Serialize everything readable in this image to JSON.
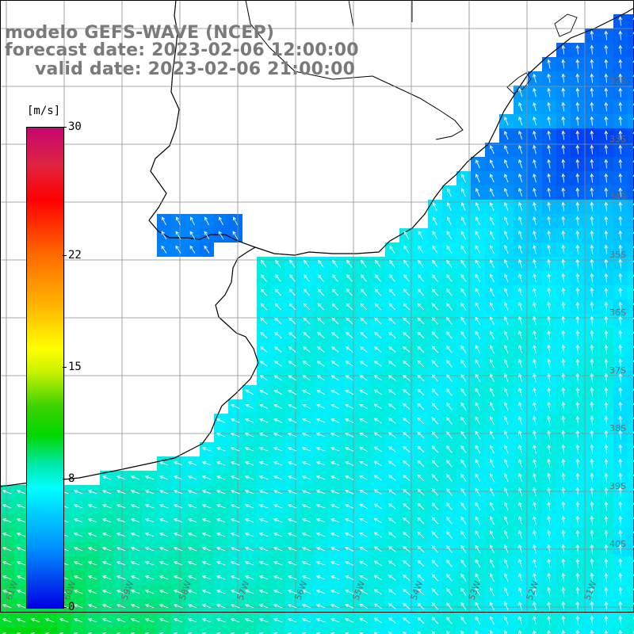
{
  "title": {
    "line1": "modelo GEFS-WAVE (NCEP)",
    "line2": "forecast date: 2023-02-06 12:00:00",
    "line3": "valid date: 2023-02-06 21:00:00"
  },
  "colorbar": {
    "unit": "[m/s]",
    "ticks": [
      {
        "label": "30",
        "value": 30
      },
      {
        "label": "22",
        "value": 22
      },
      {
        "label": "15",
        "value": 15
      },
      {
        "label": "8",
        "value": 8
      },
      {
        "label": "0",
        "value": 0
      }
    ],
    "colors": [
      "#0000e6",
      "#0096ff",
      "#00ffff",
      "#00d800",
      "#ffff00",
      "#ff6e00",
      "#ff0000",
      "#c4076f"
    ]
  },
  "grid": {
    "lat_labels": [
      "32S",
      "33S",
      "34S",
      "35S",
      "36S",
      "37S",
      "38S",
      "39S",
      "40S"
    ],
    "lon_labels": [
      "61W",
      "60W",
      "59W",
      "58W",
      "57W",
      "56W",
      "55W",
      "54W",
      "53W",
      "52W",
      "51W"
    ]
  },
  "colors": {
    "land": "#ffffff",
    "coast": "#000000",
    "grid": "#8c8c8c",
    "title": "#7a7a7a",
    "arrow": "#ffffff"
  }
}
